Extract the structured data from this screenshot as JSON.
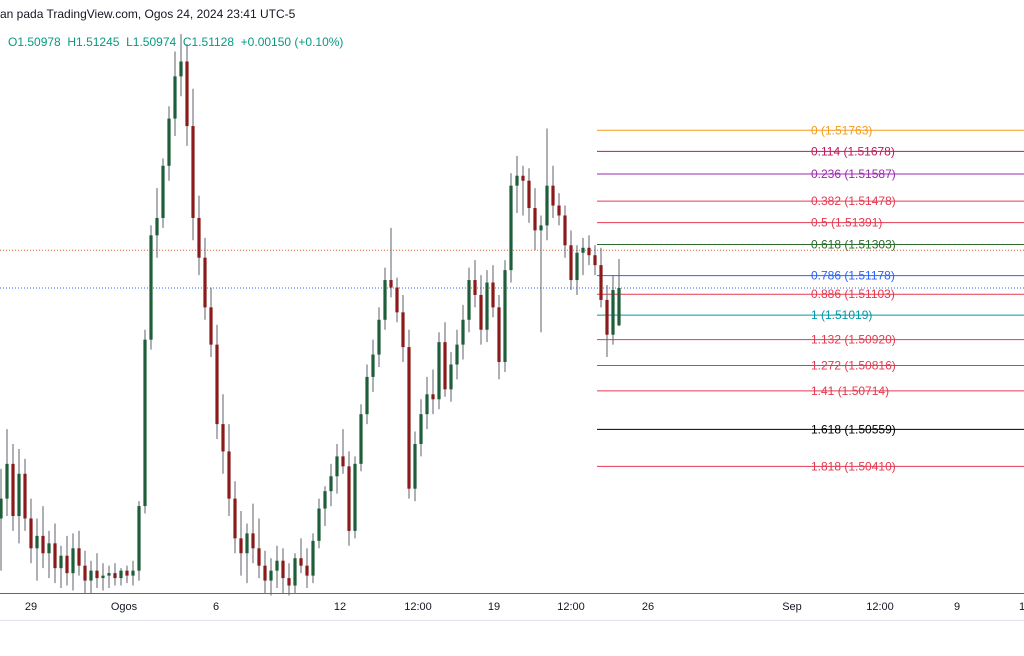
{
  "header": {
    "source": "an pada TradingView.com, Ogos 24, 2024 23:41 UTC-5"
  },
  "ohlc": {
    "open": "O1.50978",
    "high": "H1.51245",
    "low": "L1.50974",
    "close": "C1.51128",
    "change": "+0.00150 (+0.10%)"
  },
  "chart_data": {
    "type": "candlestick",
    "title": "",
    "xlabel": "",
    "ylabel": "",
    "ylim": [
      1.498,
      1.5215
    ],
    "x_ticks": [
      "29",
      "Ogos",
      "6",
      "12",
      "12:00",
      "19",
      "12:00",
      "26",
      "Sep",
      "12:00",
      "9",
      "1"
    ],
    "fibonacci": [
      {
        "level": "0",
        "price": 1.51763,
        "label": "0 (1.51763)",
        "color": "#f59c1a"
      },
      {
        "level": "0.114",
        "price": 1.51678,
        "label": "0.114 (1.51678)",
        "color": "#c2185b"
      },
      {
        "level": "0.236",
        "price": 1.51587,
        "label": "0.236 (1.51587)",
        "color": "#9c27b0"
      },
      {
        "level": "0.382",
        "price": 1.51478,
        "label": "0.382 (1.51478)",
        "color": "#e53950"
      },
      {
        "level": "0.5",
        "price": 1.51391,
        "label": "0.5 (1.51391)",
        "color": "#e53950"
      },
      {
        "level": "0.618",
        "price": 1.51303,
        "label": "0.618 (1.51303)",
        "color": "#2e6b2e"
      },
      {
        "level": "0.786",
        "price": 1.51178,
        "label": "0.786 (1.51178)",
        "color": "#2962ff"
      },
      {
        "level": "0.886",
        "price": 1.51103,
        "label": "0.886 (1.51103)",
        "color": "#e53950"
      },
      {
        "level": "1",
        "price": 1.51019,
        "label": "1 (1.51019)",
        "color": "#0097a7"
      },
      {
        "level": "1.132",
        "price": 1.5092,
        "label": "1.132 (1.50920)",
        "color": "#e53950"
      },
      {
        "level": "1.272",
        "price": 1.50816,
        "label": "1.272 (1.50816)",
        "color": "#e53950"
      },
      {
        "level": "1.41",
        "price": 1.50714,
        "label": "1.41 (1.50714)",
        "color": "#e53950"
      },
      {
        "level": "1.618",
        "price": 1.50559,
        "label": "1.618 (1.50559)",
        "color": "#000000"
      },
      {
        "level": "1.818",
        "price": 1.5041,
        "label": "1.818 (1.50410)",
        "color": "#e53950"
      }
    ],
    "series": [
      {
        "name": "",
        "candles": [
          {
            "o": 1.502,
            "h": 1.504,
            "l": 1.4999,
            "c": 1.5028
          },
          {
            "o": 1.5028,
            "h": 1.5056,
            "l": 1.5021,
            "c": 1.5042
          },
          {
            "o": 1.5042,
            "h": 1.505,
            "l": 1.5015,
            "c": 1.5021
          },
          {
            "o": 1.5021,
            "h": 1.5048,
            "l": 1.501,
            "c": 1.5038
          },
          {
            "o": 1.5038,
            "h": 1.5044,
            "l": 1.5015,
            "c": 1.502
          },
          {
            "o": 1.502,
            "h": 1.5028,
            "l": 1.5002,
            "c": 1.5008
          },
          {
            "o": 1.5008,
            "h": 1.502,
            "l": 1.4995,
            "c": 1.5013
          },
          {
            "o": 1.5013,
            "h": 1.5025,
            "l": 1.5,
            "c": 1.5006
          },
          {
            "o": 1.5006,
            "h": 1.5015,
            "l": 1.4996,
            "c": 1.501
          },
          {
            "o": 1.501,
            "h": 1.5018,
            "l": 1.4994,
            "c": 1.5
          },
          {
            "o": 1.5,
            "h": 1.5009,
            "l": 1.4992,
            "c": 1.5005
          },
          {
            "o": 1.5005,
            "h": 1.5013,
            "l": 1.4993,
            "c": 1.4998
          },
          {
            "o": 1.4998,
            "h": 1.5014,
            "l": 1.4991,
            "c": 1.5008
          },
          {
            "o": 1.5008,
            "h": 1.5015,
            "l": 1.4997,
            "c": 1.5001
          },
          {
            "o": 1.5001,
            "h": 1.5007,
            "l": 1.499,
            "c": 1.4995
          },
          {
            "o": 1.4995,
            "h": 1.5003,
            "l": 1.499,
            "c": 1.4999
          },
          {
            "o": 1.4999,
            "h": 1.5006,
            "l": 1.4992,
            "c": 1.4996
          },
          {
            "o": 1.4996,
            "h": 1.5002,
            "l": 1.4991,
            "c": 1.4997
          },
          {
            "o": 1.4997,
            "h": 1.5001,
            "l": 1.4992,
            "c": 1.4998
          },
          {
            "o": 1.4998,
            "h": 1.5002,
            "l": 1.4993,
            "c": 1.4996
          },
          {
            "o": 1.4996,
            "h": 1.5,
            "l": 1.4993,
            "c": 1.4999
          },
          {
            "o": 1.4999,
            "h": 1.5001,
            "l": 1.4994,
            "c": 1.4997
          },
          {
            "o": 1.4997,
            "h": 1.5003,
            "l": 1.4993,
            "c": 1.4999
          },
          {
            "o": 1.4999,
            "h": 1.5027,
            "l": 1.4995,
            "c": 1.5025
          },
          {
            "o": 1.5025,
            "h": 1.5096,
            "l": 1.5022,
            "c": 1.5092
          },
          {
            "o": 1.5092,
            "h": 1.5138,
            "l": 1.5088,
            "c": 1.5134
          },
          {
            "o": 1.5134,
            "h": 1.5153,
            "l": 1.5125,
            "c": 1.5141
          },
          {
            "o": 1.5141,
            "h": 1.5165,
            "l": 1.5137,
            "c": 1.5162
          },
          {
            "o": 1.5162,
            "h": 1.5186,
            "l": 1.5156,
            "c": 1.5181
          },
          {
            "o": 1.5181,
            "h": 1.5208,
            "l": 1.5174,
            "c": 1.5198
          },
          {
            "o": 1.5198,
            "h": 1.5215,
            "l": 1.519,
            "c": 1.5204
          },
          {
            "o": 1.5204,
            "h": 1.5211,
            "l": 1.517,
            "c": 1.5178
          },
          {
            "o": 1.5178,
            "h": 1.5193,
            "l": 1.5132,
            "c": 1.5141
          },
          {
            "o": 1.5141,
            "h": 1.515,
            "l": 1.5118,
            "c": 1.5125
          },
          {
            "o": 1.5125,
            "h": 1.5133,
            "l": 1.51,
            "c": 1.5105
          },
          {
            "o": 1.5105,
            "h": 1.5113,
            "l": 1.5085,
            "c": 1.509
          },
          {
            "o": 1.509,
            "h": 1.5098,
            "l": 1.5052,
            "c": 1.5058
          },
          {
            "o": 1.5058,
            "h": 1.507,
            "l": 1.5038,
            "c": 1.5047
          },
          {
            "o": 1.5047,
            "h": 1.5058,
            "l": 1.5021,
            "c": 1.5028
          },
          {
            "o": 1.5028,
            "h": 1.5035,
            "l": 1.5006,
            "c": 1.5012
          },
          {
            "o": 1.5012,
            "h": 1.5023,
            "l": 1.4997,
            "c": 1.5006
          },
          {
            "o": 1.5006,
            "h": 1.5018,
            "l": 1.4994,
            "c": 1.5014
          },
          {
            "o": 1.5014,
            "h": 1.5026,
            "l": 1.5002,
            "c": 1.5008
          },
          {
            "o": 1.5008,
            "h": 1.502,
            "l": 1.4996,
            "c": 1.5001
          },
          {
            "o": 1.5001,
            "h": 1.5007,
            "l": 1.499,
            "c": 1.4995
          },
          {
            "o": 1.4995,
            "h": 1.5004,
            "l": 1.4989,
            "c": 1.4999
          },
          {
            "o": 1.4999,
            "h": 1.5009,
            "l": 1.4992,
            "c": 1.5003
          },
          {
            "o": 1.5003,
            "h": 1.5008,
            "l": 1.499,
            "c": 1.4996
          },
          {
            "o": 1.4996,
            "h": 1.5002,
            "l": 1.4989,
            "c": 1.4993
          },
          {
            "o": 1.4993,
            "h": 1.5006,
            "l": 1.499,
            "c": 1.5004
          },
          {
            "o": 1.5004,
            "h": 1.5012,
            "l": 1.4998,
            "c": 1.5001
          },
          {
            "o": 1.5001,
            "h": 1.5008,
            "l": 1.4992,
            "c": 1.4997
          },
          {
            "o": 1.4997,
            "h": 1.5014,
            "l": 1.4994,
            "c": 1.5011
          },
          {
            "o": 1.5011,
            "h": 1.5028,
            "l": 1.5008,
            "c": 1.5024
          },
          {
            "o": 1.5024,
            "h": 1.5033,
            "l": 1.5017,
            "c": 1.5031
          },
          {
            "o": 1.5031,
            "h": 1.5042,
            "l": 1.5025,
            "c": 1.5037
          },
          {
            "o": 1.5037,
            "h": 1.505,
            "l": 1.503,
            "c": 1.5045
          },
          {
            "o": 1.5045,
            "h": 1.5056,
            "l": 1.5038,
            "c": 1.5041
          },
          {
            "o": 1.5041,
            "h": 1.5047,
            "l": 1.5009,
            "c": 1.5015
          },
          {
            "o": 1.5015,
            "h": 1.5045,
            "l": 1.5012,
            "c": 1.5042
          },
          {
            "o": 1.5042,
            "h": 1.5066,
            "l": 1.5039,
            "c": 1.5062
          },
          {
            "o": 1.5062,
            "h": 1.5082,
            "l": 1.5058,
            "c": 1.5077
          },
          {
            "o": 1.5077,
            "h": 1.5092,
            "l": 1.5071,
            "c": 1.5086
          },
          {
            "o": 1.5086,
            "h": 1.5105,
            "l": 1.5081,
            "c": 1.51
          },
          {
            "o": 1.51,
            "h": 1.5121,
            "l": 1.5096,
            "c": 1.5116
          },
          {
            "o": 1.5116,
            "h": 1.5137,
            "l": 1.5109,
            "c": 1.5113
          },
          {
            "o": 1.5113,
            "h": 1.5117,
            "l": 1.5099,
            "c": 1.5103
          },
          {
            "o": 1.5103,
            "h": 1.511,
            "l": 1.5083,
            "c": 1.5089
          },
          {
            "o": 1.5089,
            "h": 1.5096,
            "l": 1.5028,
            "c": 1.5032
          },
          {
            "o": 1.5032,
            "h": 1.5055,
            "l": 1.5027,
            "c": 1.505
          },
          {
            "o": 1.505,
            "h": 1.5068,
            "l": 1.5045,
            "c": 1.5062
          },
          {
            "o": 1.5062,
            "h": 1.5077,
            "l": 1.5056,
            "c": 1.507
          },
          {
            "o": 1.507,
            "h": 1.508,
            "l": 1.5062,
            "c": 1.5068
          },
          {
            "o": 1.5068,
            "h": 1.5095,
            "l": 1.5064,
            "c": 1.5091
          },
          {
            "o": 1.5091,
            "h": 1.5099,
            "l": 1.5069,
            "c": 1.5072
          },
          {
            "o": 1.5072,
            "h": 1.5087,
            "l": 1.5067,
            "c": 1.5082
          },
          {
            "o": 1.5082,
            "h": 1.5096,
            "l": 1.5076,
            "c": 1.509
          },
          {
            "o": 1.509,
            "h": 1.5106,
            "l": 1.5084,
            "c": 1.51
          },
          {
            "o": 1.51,
            "h": 1.5121,
            "l": 1.5095,
            "c": 1.5116
          },
          {
            "o": 1.5116,
            "h": 1.5124,
            "l": 1.5105,
            "c": 1.511
          },
          {
            "o": 1.511,
            "h": 1.5118,
            "l": 1.509,
            "c": 1.5096
          },
          {
            "o": 1.5096,
            "h": 1.512,
            "l": 1.5091,
            "c": 1.5115
          },
          {
            "o": 1.5115,
            "h": 1.5122,
            "l": 1.5101,
            "c": 1.5105
          },
          {
            "o": 1.5105,
            "h": 1.511,
            "l": 1.5076,
            "c": 1.5083
          },
          {
            "o": 1.5083,
            "h": 1.5124,
            "l": 1.5079,
            "c": 1.512
          },
          {
            "o": 1.512,
            "h": 1.5159,
            "l": 1.5115,
            "c": 1.5154
          },
          {
            "o": 1.5154,
            "h": 1.5166,
            "l": 1.5143,
            "c": 1.5158
          },
          {
            "o": 1.5158,
            "h": 1.5162,
            "l": 1.5142,
            "c": 1.5156
          },
          {
            "o": 1.5156,
            "h": 1.5161,
            "l": 1.5139,
            "c": 1.5145
          },
          {
            "o": 1.5145,
            "h": 1.5153,
            "l": 1.5128,
            "c": 1.5136
          },
          {
            "o": 1.5136,
            "h": 1.5142,
            "l": 1.5095,
            "c": 1.5138
          },
          {
            "o": 1.5138,
            "h": 1.5177,
            "l": 1.5132,
            "c": 1.5154
          },
          {
            "o": 1.5154,
            "h": 1.5162,
            "l": 1.5141,
            "c": 1.5146
          },
          {
            "o": 1.5146,
            "h": 1.5151,
            "l": 1.5138,
            "c": 1.5142
          },
          {
            "o": 1.5142,
            "h": 1.5146,
            "l": 1.5125,
            "c": 1.513
          },
          {
            "o": 1.513,
            "h": 1.5136,
            "l": 1.5112,
            "c": 1.5116
          },
          {
            "o": 1.5116,
            "h": 1.513,
            "l": 1.511,
            "c": 1.5127
          },
          {
            "o": 1.5127,
            "h": 1.5133,
            "l": 1.5118,
            "c": 1.5129
          },
          {
            "o": 1.5129,
            "h": 1.5134,
            "l": 1.5122,
            "c": 1.5126
          },
          {
            "o": 1.5126,
            "h": 1.513,
            "l": 1.5118,
            "c": 1.5122
          },
          {
            "o": 1.5122,
            "h": 1.5129,
            "l": 1.5105,
            "c": 1.5108
          },
          {
            "o": 1.5108,
            "h": 1.5114,
            "l": 1.5085,
            "c": 1.5094
          },
          {
            "o": 1.5094,
            "h": 1.5118,
            "l": 1.509,
            "c": 1.5112
          },
          {
            "o": 1.50978,
            "h": 1.51245,
            "l": 1.50974,
            "c": 1.51128
          }
        ]
      }
    ],
    "grid": false,
    "legend": "none"
  },
  "colors": {
    "up": "#1e5e3a",
    "down": "#8b1a1a",
    "baseline": "#2a7f8a",
    "dotted_red": "#e0623a",
    "dotted_blue": "#2962ff",
    "text": "#131722",
    "header_ohlc": "#089981"
  }
}
